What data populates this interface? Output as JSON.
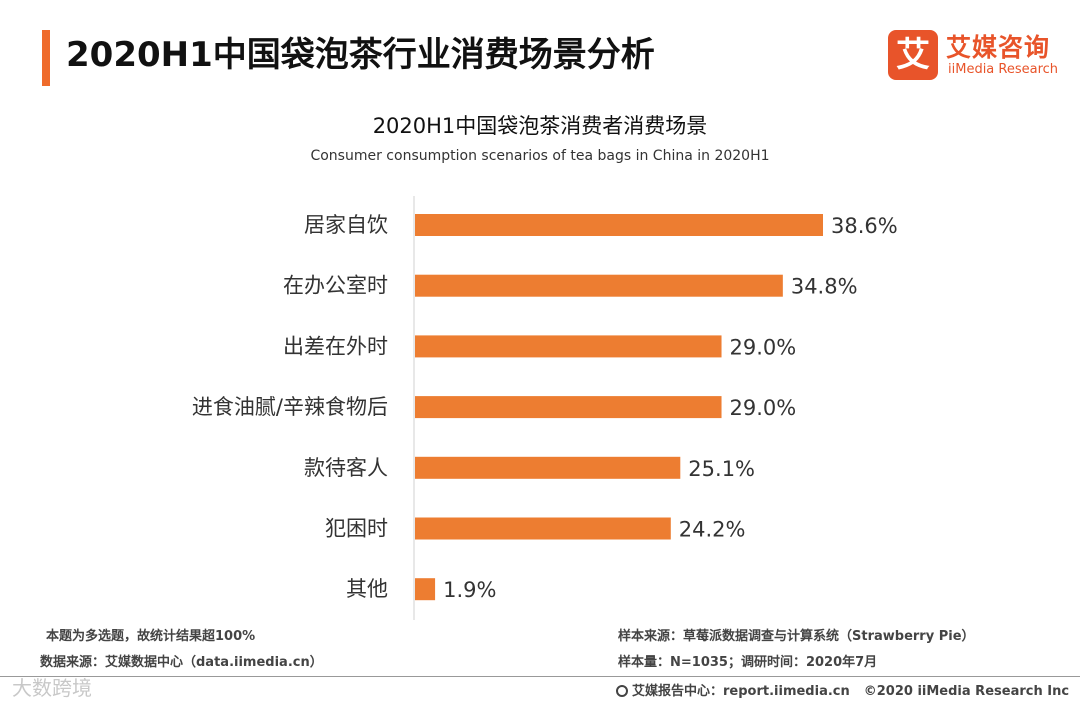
{
  "header": {
    "title": "2020H1中国袋泡茶行业消费场景分析",
    "brand_cn": "艾媒咨询",
    "brand_en": "iiMedia Research",
    "brand_mark": "艾",
    "accent_color": "#ef6b2b"
  },
  "chart_data": {
    "type": "bar",
    "orientation": "horizontal",
    "title": "2020H1中国袋泡茶消费者消费场景",
    "subtitle": "Consumer consumption scenarios of tea bags in China in 2020H1",
    "categories": [
      "居家自饮",
      "在办公室时",
      "出差在外时",
      "进食油腻/辛辣食物后",
      "款待客人",
      "犯困时",
      "其他"
    ],
    "values": [
      38.6,
      34.8,
      29.0,
      29.0,
      25.1,
      24.2,
      1.9
    ],
    "labels": [
      "38.6%",
      "34.8%",
      "29.0%",
      "29.0%",
      "25.1%",
      "24.2%",
      "1.9%"
    ],
    "unit": "%",
    "xlim": [
      0,
      45
    ],
    "bar_color": "#ed7d31",
    "legend": "none",
    "grid": false
  },
  "footer": {
    "note": "本题为多选题，故统计结果超100%",
    "data_source": "数据来源：艾媒数据中心（data.iimedia.cn）",
    "sample_source": "样本来源：草莓派数据调查与计算系统（Strawberry Pie）",
    "sample_size": "样本量：N=1035；调研时间：2020年7月",
    "report_center": "艾媒报告中心：report.iimedia.cn",
    "copyright": "©2020  iiMedia Research  Inc",
    "watermark": "大数跨境"
  }
}
